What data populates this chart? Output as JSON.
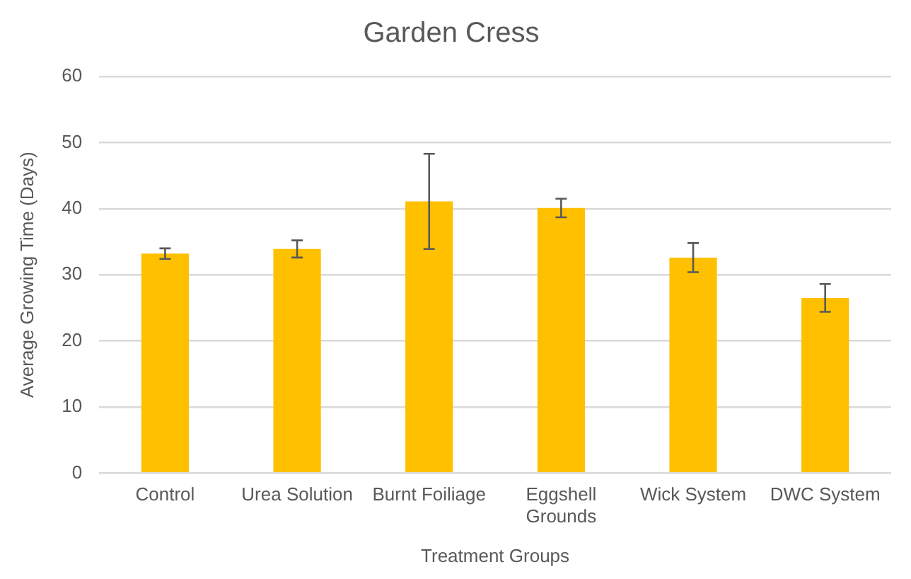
{
  "chart_data": {
    "type": "bar",
    "title": "Garden Cress",
    "xlabel": "Treatment Groups",
    "ylabel": "Average Growing Time (Days)",
    "categories": [
      "Control",
      "Urea Solution",
      "Burnt Foiliage",
      "Eggshell Grounds",
      "Wick System",
      "DWC System"
    ],
    "values": [
      33.2,
      33.9,
      41.1,
      40.1,
      32.6,
      26.5
    ],
    "errors": [
      0.8,
      1.3,
      7.2,
      1.4,
      2.2,
      2.1
    ],
    "color": "#ffc000",
    "ylim": [
      0,
      60
    ],
    "yticks": [
      0,
      10,
      20,
      30,
      40,
      50,
      60
    ],
    "grid": "y",
    "legend": false
  }
}
